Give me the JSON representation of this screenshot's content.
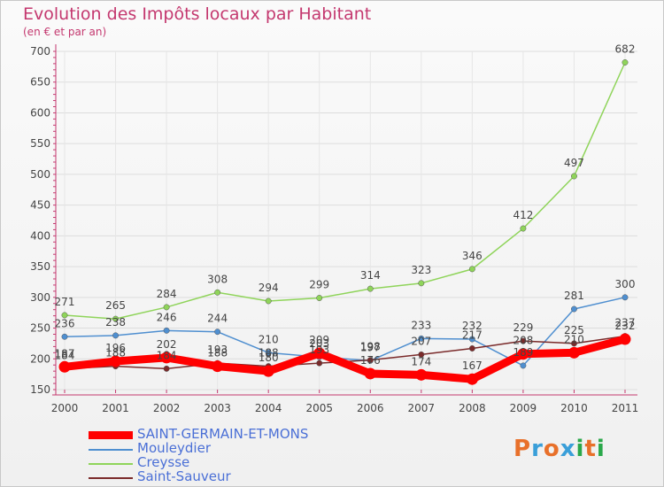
{
  "header": {
    "title": "Evolution des Impôts locaux par Habitant",
    "subtitle": "(en € et par an)"
  },
  "logo": {
    "letters": [
      "P",
      "r",
      "o",
      "x",
      "i",
      "t",
      "i"
    ],
    "colors": [
      "#e8702a",
      "#3a9fd9",
      "#e8702a",
      "#3a9fd9",
      "#2aa84a",
      "#e8702a",
      "#2aa84a"
    ]
  },
  "chart_data": {
    "type": "line",
    "x": [
      "2000",
      "2001",
      "2002",
      "2003",
      "2004",
      "2005",
      "2006",
      "2007",
      "2008",
      "2009",
      "2010",
      "2011"
    ],
    "ylim": [
      150,
      700
    ],
    "yticks": [
      150,
      200,
      250,
      300,
      350,
      400,
      450,
      500,
      550,
      600,
      650,
      700
    ],
    "grid": true,
    "legend_position": "bottom-left",
    "series": [
      {
        "name": "SAINT-GERMAIN-ET-MONS",
        "color": "#ff0000",
        "values": [
          187,
          196,
          202,
          188,
          180,
          209,
          176,
          174,
          167,
          208,
          210,
          232
        ]
      },
      {
        "name": "Mouleydier",
        "color": "#4f8fd0",
        "values": [
          236,
          238,
          246,
          244,
          210,
          203,
          197,
          233,
          232,
          189,
          281,
          300
        ]
      },
      {
        "name": "Creysse",
        "color": "#8fd45a",
        "values": [
          271,
          265,
          284,
          308,
          294,
          299,
          314,
          323,
          346,
          412,
          497,
          682
        ]
      },
      {
        "name": "Saint-Sauveur",
        "color": "#7a2a2a",
        "values": [
          184,
          188,
          184,
          193,
          188,
          193,
          198,
          207,
          217,
          229,
          225,
          237
        ]
      }
    ]
  }
}
